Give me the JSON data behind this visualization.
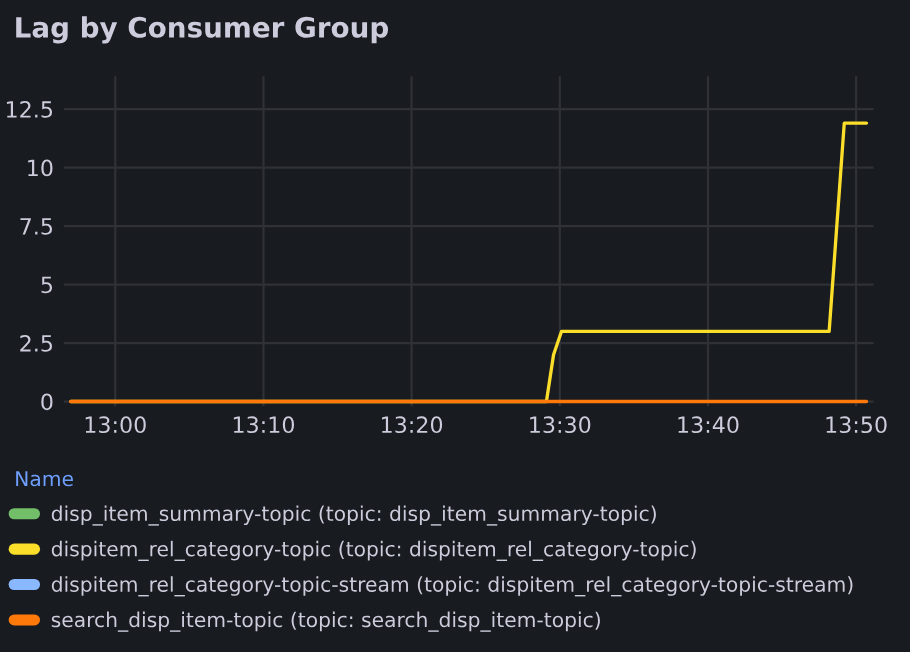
{
  "chart_data": {
    "type": "line",
    "title": "Lag by Consumer Group",
    "legend_title": "Name",
    "xlim": [
      12.942,
      13.853
    ],
    "ylim": [
      -0.2,
      13.9
    ],
    "xticks": [
      {
        "value": 13.0,
        "label": "13:00"
      },
      {
        "value": 13.1667,
        "label": "13:10"
      },
      {
        "value": 13.3333,
        "label": "13:20"
      },
      {
        "value": 13.5,
        "label": "13:30"
      },
      {
        "value": 13.6667,
        "label": "13:40"
      },
      {
        "value": 13.8333,
        "label": "13:50"
      }
    ],
    "yticks": [
      0,
      2.5,
      5,
      7.5,
      10,
      12.5
    ],
    "grid": true,
    "legend": "bottom",
    "marker": "none",
    "line_style": "solid",
    "series": [
      {
        "name": "disp_item_summary-topic (topic: disp_item_summary-topic)",
        "color": "#73bf69"
      },
      {
        "name": "dispitem_rel_category-topic (topic: dispitem_rel_category-topic)",
        "color": "#fade2a",
        "x": [
          12.95,
          13.485,
          13.493,
          13.502,
          13.803,
          13.82,
          13.845
        ],
        "values": [
          0,
          0,
          2,
          3,
          3,
          11.9,
          11.9
        ]
      },
      {
        "name": "dispitem_rel_category-topic-stream (topic: dispitem_rel_category-topic-stream)",
        "color": "#8ab8ff"
      },
      {
        "name": "search_disp_item-topic (topic: search_disp_item-topic)",
        "color": "#ff780a",
        "x": [
          12.95,
          13.845
        ],
        "values": [
          0,
          0
        ]
      }
    ]
  }
}
